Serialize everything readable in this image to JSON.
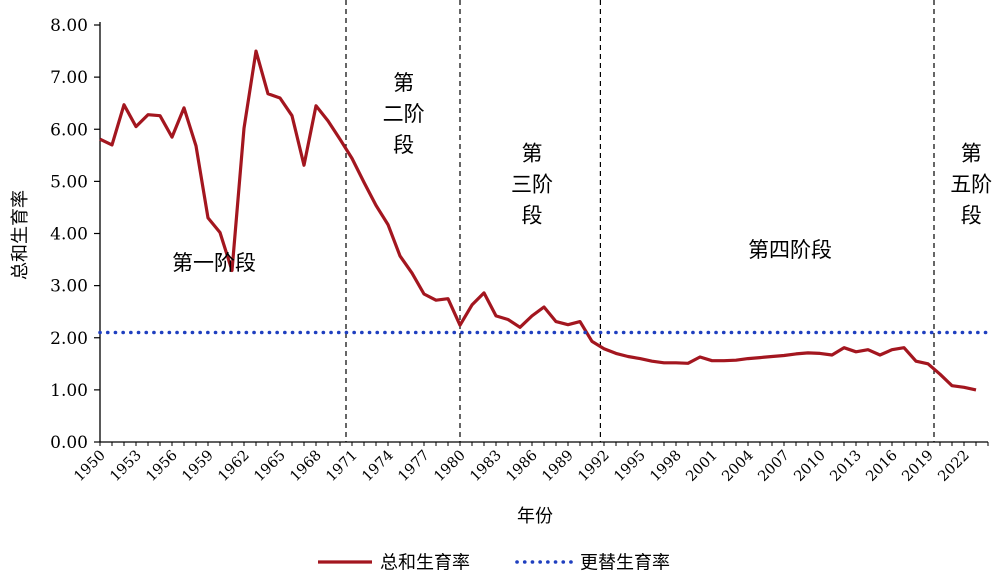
{
  "chart_data": {
    "type": "line",
    "xlabel": "年份",
    "ylabel": "总和生育率",
    "ylim": [
      0,
      8
    ],
    "xlim": [
      1950,
      2024
    ],
    "y_ticks": [
      "0.00",
      "1.00",
      "2.00",
      "3.00",
      "4.00",
      "5.00",
      "6.00",
      "7.00",
      "8.00"
    ],
    "x_ticks": [
      "1950",
      "1953",
      "1956",
      "1959",
      "1962",
      "1965",
      "1968",
      "1971",
      "1974",
      "1977",
      "1980",
      "1983",
      "1986",
      "1989",
      "1992",
      "1995",
      "1998",
      "2001",
      "2004",
      "2007",
      "2010",
      "2013",
      "2016",
      "2019",
      "2022"
    ],
    "grid": false,
    "legend_position": "bottom",
    "series": [
      {
        "name": "总和生育率",
        "style": "solid",
        "color": "#a3161f",
        "x": [
          1950,
          1951,
          1952,
          1953,
          1954,
          1955,
          1956,
          1957,
          1958,
          1959,
          1960,
          1961,
          1962,
          1963,
          1964,
          1965,
          1966,
          1967,
          1968,
          1969,
          1970,
          1971,
          1972,
          1973,
          1974,
          1975,
          1976,
          1977,
          1978,
          1979,
          1980,
          1981,
          1982,
          1983,
          1984,
          1985,
          1986,
          1987,
          1988,
          1989,
          1990,
          1991,
          1992,
          1993,
          1994,
          1995,
          1996,
          1997,
          1998,
          1999,
          2000,
          2001,
          2002,
          2003,
          2004,
          2005,
          2006,
          2007,
          2008,
          2009,
          2010,
          2011,
          2012,
          2013,
          2014,
          2015,
          2016,
          2017,
          2018,
          2019,
          2020,
          2021,
          2022,
          2023
        ],
        "values": [
          5.81,
          5.7,
          6.47,
          6.05,
          6.28,
          6.26,
          5.85,
          6.41,
          5.68,
          4.3,
          4.02,
          3.29,
          6.02,
          7.5,
          6.68,
          6.6,
          6.26,
          5.31,
          6.45,
          6.16,
          5.81,
          5.44,
          4.98,
          4.54,
          4.17,
          3.57,
          3.24,
          2.84,
          2.72,
          2.75,
          2.24,
          2.63,
          2.86,
          2.42,
          2.35,
          2.2,
          2.42,
          2.59,
          2.31,
          2.25,
          2.31,
          1.93,
          1.79,
          1.7,
          1.64,
          1.6,
          1.55,
          1.52,
          1.52,
          1.51,
          1.63,
          1.56,
          1.56,
          1.57,
          1.6,
          1.62,
          1.64,
          1.66,
          1.69,
          1.71,
          1.7,
          1.67,
          1.81,
          1.73,
          1.77,
          1.67,
          1.77,
          1.81,
          1.55,
          1.5,
          1.3,
          1.08,
          1.05,
          1.0
        ]
      },
      {
        "name": "更替生育率",
        "style": "dotted",
        "color": "#1f3fbf",
        "x": [
          1950,
          2024
        ],
        "values": [
          2.1,
          2.1
        ]
      }
    ],
    "dividers": [
      1970.5,
      1980,
      1991.7,
      2019.5
    ],
    "annotations": [
      {
        "text": "第一阶段",
        "x": 1959.5,
        "y": 3.3,
        "lines": [
          "第一阶段"
        ]
      },
      {
        "text": "第二阶段",
        "x": 1975.3,
        "y": 6.75,
        "lines": [
          "第",
          "二阶",
          "段"
        ]
      },
      {
        "text": "第三阶段",
        "x": 1986,
        "y": 5.4,
        "lines": [
          "第",
          "三阶",
          "段"
        ]
      },
      {
        "text": "第四阶段",
        "x": 2007.5,
        "y": 3.55,
        "lines": [
          "第四阶段"
        ]
      },
      {
        "text": "第五阶段",
        "x": 2022.6,
        "y": 5.4,
        "lines": [
          "第",
          "五阶",
          "段"
        ]
      }
    ]
  }
}
